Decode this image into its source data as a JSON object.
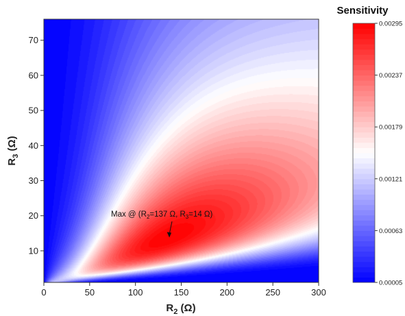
{
  "chart_data": {
    "type": "heatmap",
    "subtype": "filled-contour",
    "x": {
      "label_main": "R",
      "label_sub": "2",
      "label_unit": " (Ω)",
      "range": [
        0,
        300
      ],
      "ticks": [
        0,
        50,
        100,
        150,
        200,
        250,
        300
      ],
      "tick_labels": [
        "0",
        "50",
        "100",
        "150",
        "200",
        "250",
        "300"
      ]
    },
    "y": {
      "label_main": "R",
      "label_sub": "3",
      "label_unit": " (Ω)",
      "range": [
        1,
        76
      ],
      "ticks": [
        10,
        20,
        30,
        40,
        50,
        60,
        70
      ],
      "tick_labels": [
        "10",
        "20",
        "30",
        "40",
        "50",
        "60",
        "70"
      ]
    },
    "colorbar": {
      "title": "Sensitivity",
      "range": [
        5e-05,
        0.00295
      ],
      "ticks": [
        5e-05,
        0.00063,
        0.00121,
        0.00179,
        0.00237,
        0.00295
      ],
      "tick_labels": [
        "0.00005",
        "0.00063",
        "0.00121",
        "0.00179",
        "0.00237",
        "0.00295"
      ],
      "colors": [
        "#0000ff",
        "#ffffff",
        "#ff0000"
      ]
    },
    "maximum": {
      "x": 137,
      "y": 14,
      "label_pre": "Max @ (R",
      "label_sub1": "2",
      "label_mid": "=137 Ω, R",
      "label_sub2": "3",
      "label_post": "=14 Ω)"
    },
    "grid": false,
    "levels": 50
  }
}
